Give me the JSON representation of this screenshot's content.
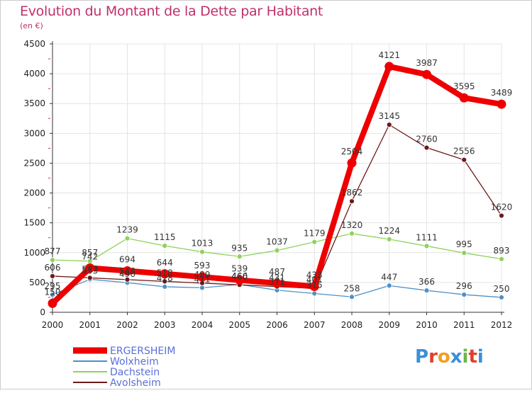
{
  "page": {
    "title": "Evolution du Montant de la Dette par Habitant",
    "subtitle": "(en €)",
    "logo_text": "Proxiti"
  },
  "colors": {
    "title": "#c0306a",
    "legend_text": "#5a6fd8",
    "grid": "#e4e4e4",
    "axis": "#333333",
    "tick_minor": "#c0306a"
  },
  "chart_data": {
    "type": "line",
    "x": [
      "2000",
      "2001",
      "2002",
      "2003",
      "2004",
      "2005",
      "2006",
      "2007",
      "2008",
      "2009",
      "2010",
      "2011",
      "2012"
    ],
    "ylim": [
      0,
      4500
    ],
    "yticks": [
      0,
      500,
      1000,
      1500,
      2000,
      2500,
      3000,
      3500,
      4000,
      4500
    ],
    "grid": true,
    "legend_position": "bottom-left",
    "series": [
      {
        "name": "ERGERSHEIM",
        "color": "#ee0000",
        "thick": true,
        "values": [
          150,
          742,
          694,
          644,
          593,
          539,
          487,
          433,
          2504,
          4121,
          3987,
          3595,
          3489
        ],
        "labels": [
          "150",
          "742",
          "694",
          "644",
          "593",
          "539",
          "487",
          "433",
          "2504",
          "4121",
          "3987",
          "3595",
          "3489"
        ]
      },
      {
        "name": "Wolxheim",
        "color": "#4f90c6",
        "thick": false,
        "values": [
          295,
          553,
          496,
          428,
          411,
          466,
          371,
          315,
          258,
          447,
          366,
          296,
          250
        ],
        "labels": [
          "295",
          "553",
          "496",
          "428",
          "411",
          "466",
          "371",
          "315",
          "258",
          "447",
          "366",
          "296",
          "250"
        ]
      },
      {
        "name": "Dachstein",
        "color": "#8fd25a",
        "thick": false,
        "values": [
          877,
          857,
          1239,
          1115,
          1013,
          935,
          1037,
          1179,
          1320,
          1224,
          1111,
          995,
          893
        ],
        "labels": [
          "877",
          "857",
          "1239",
          "1115",
          "1013",
          "935",
          "1037",
          "1179",
          "1320",
          "1224",
          "1111",
          "995",
          "893"
        ]
      },
      {
        "name": "Avolsheim",
        "color": "#6b1a1a",
        "thick": false,
        "values": [
          606,
          577,
          548,
          518,
          489,
          460,
          431,
          401,
          1862,
          3145,
          2760,
          2556,
          1620
        ],
        "labels": [
          "606",
          "577",
          "548",
          "518",
          "489",
          "460",
          "431",
          "401",
          "1862",
          "3145",
          "2760",
          "2556",
          "1620"
        ]
      }
    ]
  }
}
